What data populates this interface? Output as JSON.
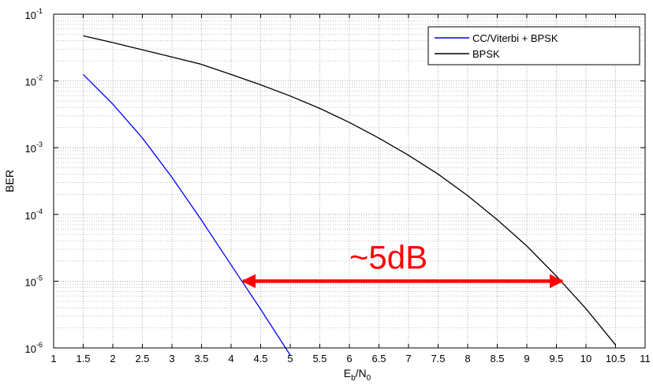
{
  "chart_data": {
    "type": "line",
    "xlabel": {
      "main": "E",
      "sub1": "b",
      "mid": "/N",
      "sub2": "0"
    },
    "ylabel": "BER",
    "xlim": [
      1,
      11
    ],
    "ylim": [
      1e-06,
      0.1
    ],
    "yscale": "log",
    "grid": "dotted major and minor",
    "legend_position": "top-right",
    "x_ticks": [
      1,
      1.5,
      2,
      2.5,
      3,
      3.5,
      4,
      4.5,
      5,
      5.5,
      6,
      6.5,
      7,
      7.5,
      8,
      8.5,
      9,
      9.5,
      10,
      10.5,
      11
    ],
    "x_tick_labels": [
      "1",
      "1.5",
      "2",
      "2.5",
      "3",
      "3.5",
      "4",
      "4.5",
      "5",
      "5.5",
      "6",
      "6.5",
      "7",
      "7.5",
      "8",
      "8.5",
      "9",
      "9.5",
      "10",
      "10.5",
      "11"
    ],
    "y_ticks": [
      {
        "value": 1e-06,
        "base": "10",
        "exp": "-6"
      },
      {
        "value": 1e-05,
        "base": "10",
        "exp": "-5"
      },
      {
        "value": 0.0001,
        "base": "10",
        "exp": "-4"
      },
      {
        "value": 0.001,
        "base": "10",
        "exp": "-3"
      },
      {
        "value": 0.01,
        "base": "10",
        "exp": "-2"
      },
      {
        "value": 0.1,
        "base": "10",
        "exp": "-1"
      }
    ],
    "series": [
      {
        "name": "CC/Viterbi + BPSK",
        "color": "#0000ff",
        "x": [
          1.5,
          2.0,
          2.5,
          3.0,
          3.5,
          4.0,
          4.5,
          5.0
        ],
        "y": [
          0.0125,
          0.0045,
          0.0014,
          0.00036,
          8.2e-05,
          1.75e-05,
          3.8e-06,
          7.8e-07
        ]
      },
      {
        "name": "BPSK",
        "color": "#000000",
        "x": [
          1.5,
          2.0,
          2.5,
          3.0,
          3.5,
          4.0,
          4.5,
          5.0,
          5.5,
          6.0,
          6.5,
          7.0,
          7.5,
          8.0,
          8.5,
          9.0,
          9.5,
          10.0,
          10.5
        ],
        "y": [
          0.0475,
          0.0375,
          0.0293,
          0.0229,
          0.0177,
          0.0125,
          0.00876,
          0.00595,
          0.00388,
          0.00239,
          0.00139,
          0.00077,
          0.000402,
          0.000191,
          8.34e-05,
          3.36e-05,
          1.19e-05,
          3.87e-06,
          1.11e-06
        ]
      }
    ],
    "annotation": {
      "text": "~5dB",
      "color": "#ff0000",
      "arrow_y": 1e-05,
      "arrow_x_from": 4.2,
      "arrow_x_to": 9.6
    }
  }
}
